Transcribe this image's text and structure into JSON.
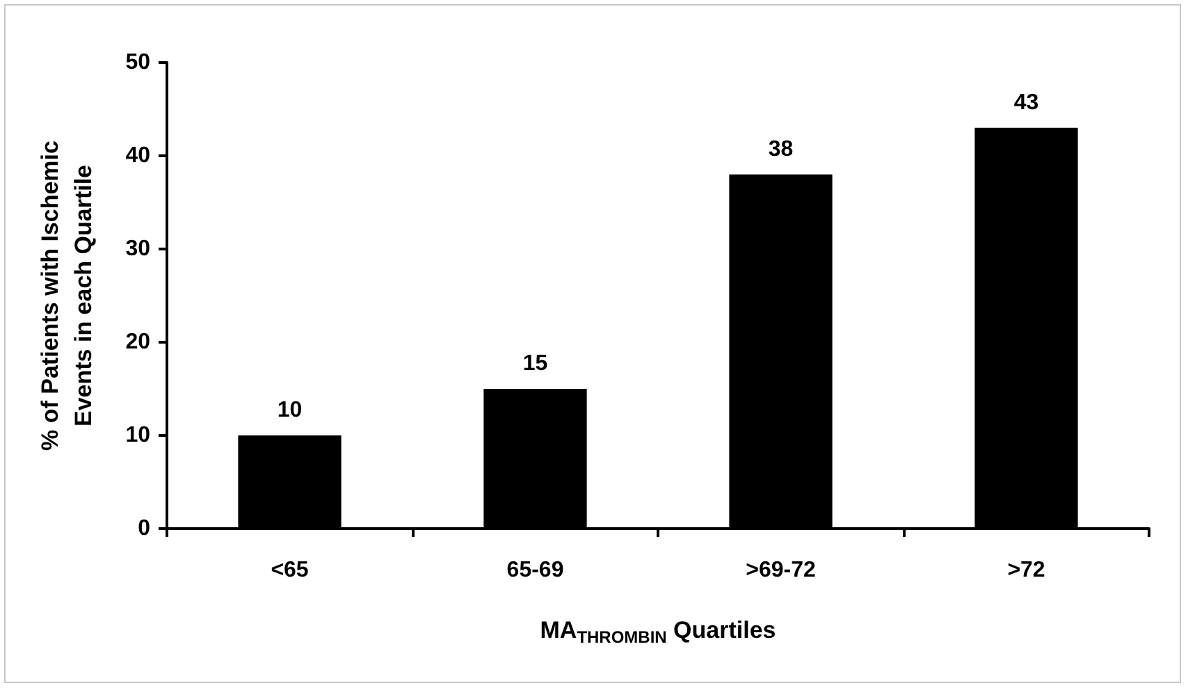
{
  "chart_data": {
    "type": "bar",
    "categories": [
      "<65",
      "65-69",
      ">69-72",
      ">72"
    ],
    "values": [
      10,
      15,
      38,
      43
    ],
    "color": "#000000",
    "xlabel": "MA$_{THROMBIN}$ Quartiles",
    "ylabel": "% of Patients with Ischemic Events in each Quartile",
    "ylim": [
      0,
      50
    ],
    "yticks": [
      0,
      10,
      20,
      30,
      40,
      50
    ],
    "data_labels": true,
    "grid": false
  }
}
